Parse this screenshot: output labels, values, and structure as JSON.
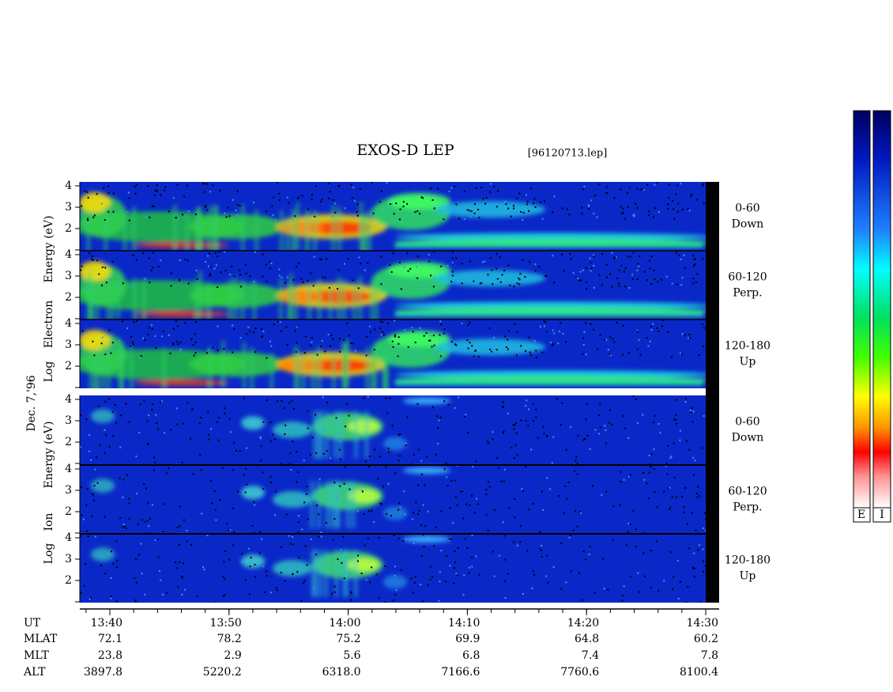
{
  "title": "EXOS-D LEP",
  "file": "[96120713.lep]",
  "date": "Dec. 7,'96",
  "electron": {
    "axis_label": [
      "Log",
      "Electron",
      "Energy (eV)"
    ],
    "panels": [
      {
        "angle": "0-60",
        "direction": "Down"
      },
      {
        "angle": "60-120",
        "direction": "Perp."
      },
      {
        "angle": "120-180",
        "direction": "Up"
      }
    ]
  },
  "ion": {
    "axis_label": [
      "Log",
      "Ion",
      "Energy (eV)"
    ],
    "panels": [
      {
        "angle": "0-60",
        "direction": "Down"
      },
      {
        "angle": "60-120",
        "direction": "Perp."
      },
      {
        "angle": "120-180",
        "direction": "Up"
      }
    ]
  },
  "yticks": [
    2,
    3,
    4
  ],
  "time_axis": {
    "label": "UT",
    "ticks": [
      "13:40",
      "13:50",
      "14:00",
      "14:10",
      "14:20",
      "14:30"
    ]
  },
  "rows": [
    {
      "label": "MLAT",
      "values": [
        "72.1",
        "78.2",
        "75.2",
        "69.9",
        "64.8",
        "60.2"
      ]
    },
    {
      "label": "MLT",
      "values": [
        "23.8",
        "2.9",
        "5.6",
        "6.8",
        "7.4",
        "7.8"
      ]
    },
    {
      "label": "ALT",
      "values": [
        "3897.8",
        "5220.2",
        "6318.0",
        "7166.6",
        "7760.6",
        "8100.4"
      ]
    }
  ],
  "colorbars": [
    "E",
    "I"
  ]
}
